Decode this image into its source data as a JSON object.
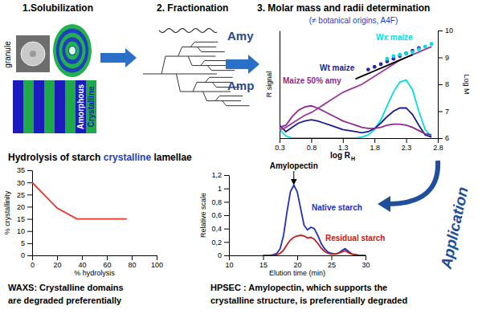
{
  "steps": [
    "1.Solubilization",
    "2. Fractionation",
    "3. Molar mass and radii determination"
  ],
  "step3_note": "(≠ botanical origins, A4F)",
  "granule": "granule",
  "layers": [
    "Amorphous",
    "Crystalline"
  ],
  "fractions": [
    "Amy",
    "Amp"
  ],
  "application": "Application",
  "chart_data": [
    {
      "type": "line",
      "xlabel": "log R",
      "xlabel_subscript": "H",
      "ylabel": "R signal",
      "y2label": "Log M",
      "x": [
        0.3,
        0.4,
        0.5,
        0.6,
        0.7,
        0.8,
        0.9,
        1.0,
        1.1,
        1.2,
        1.3,
        1.4,
        1.5,
        1.6,
        1.7,
        1.8,
        1.9,
        2.0,
        2.1,
        2.2,
        2.3,
        2.4,
        2.5,
        2.6,
        2.7,
        2.8
      ],
      "xlim": [
        0.3,
        2.8
      ],
      "xticks": [
        0.3,
        0.8,
        1.3,
        1.8,
        2.3,
        2.8
      ],
      "ylim": [
        0,
        1
      ],
      "yticks": [],
      "y2lim": [
        6,
        10
      ],
      "y2ticks": [
        6,
        7,
        8,
        9,
        10
      ],
      "series": [
        {
          "name": "Wx maize",
          "color": "#00dde6",
          "values": [
            0.08,
            0.02,
            0,
            0,
            0,
            0,
            0,
            0,
            0,
            0,
            0,
            0,
            0,
            0.01,
            0.03,
            0.08,
            0.17,
            0.3,
            0.43,
            0.52,
            0.54,
            0.45,
            0.25,
            0.08,
            0.01,
            null
          ]
        },
        {
          "name": "Wt maize",
          "color": "#1c1c8e",
          "values": [
            0.12,
            0.06,
            0.1,
            0.14,
            0.16,
            0.17,
            0.16,
            0.14,
            0.12,
            0.1,
            0.08,
            0.07,
            0.06,
            0.05,
            0.06,
            0.09,
            0.14,
            0.2,
            0.25,
            0.28,
            0.28,
            0.22,
            0.12,
            0.03,
            0.01,
            null
          ]
        },
        {
          "name": "Maize 50% amy",
          "color": "#8e2a8e",
          "values": [
            0.1,
            0.12,
            0.2,
            0.26,
            0.29,
            0.3,
            0.28,
            0.25,
            0.22,
            0.19,
            0.16,
            0.14,
            0.12,
            0.1,
            0.09,
            0.09,
            0.1,
            0.12,
            0.13,
            0.13,
            0.12,
            0.1,
            0.07,
            0.04,
            0.03,
            null
          ]
        },
        {
          "color": "#9b3b9b",
          "axis": "y2",
          "values": [
            6.3,
            6.4,
            6.55,
            6.7,
            6.85,
            6.95,
            7.1,
            7.25,
            7.4,
            7.55,
            7.7,
            7.8,
            7.9,
            8.0,
            8.15,
            8.3,
            8.45,
            8.6,
            8.75,
            8.9,
            9.0,
            9.1,
            9.2,
            9.3,
            9.4,
            null
          ]
        },
        {
          "color": "#000000",
          "axis": "y2",
          "values": [
            null,
            null,
            null,
            null,
            null,
            null,
            null,
            null,
            null,
            null,
            null,
            null,
            8.2,
            8.3,
            8.4,
            8.5,
            8.6,
            8.7,
            8.8,
            8.9,
            9.0,
            9.1,
            null,
            null,
            null,
            null
          ]
        },
        {
          "color": "#2a2aa8",
          "axis": "y2",
          "marker": "circle",
          "values": [
            null,
            null,
            null,
            null,
            null,
            null,
            null,
            null,
            null,
            null,
            null,
            null,
            null,
            null,
            8.55,
            8.65,
            8.75,
            8.85,
            8.95,
            9.05,
            9.15,
            9.25,
            9.35,
            null,
            null,
            null
          ]
        },
        {
          "color": "#00dde6",
          "axis": "y2",
          "marker": "circle",
          "values": [
            null,
            null,
            null,
            null,
            null,
            null,
            null,
            null,
            null,
            null,
            null,
            null,
            null,
            null,
            null,
            null,
            null,
            8.95,
            9.05,
            9.1,
            9.15,
            9.2,
            9.3,
            9.4,
            9.5,
            null
          ]
        }
      ]
    },
    {
      "type": "line",
      "title": [
        "Hydrolysis of starch",
        "crystalline",
        "lamellae"
      ],
      "xlabel": "% hydrolysis",
      "ylabel": "% crystallinity",
      "x": [
        0,
        20,
        36,
        76
      ],
      "xlim": [
        0,
        100
      ],
      "xticks": [
        0,
        20,
        40,
        60,
        80,
        100
      ],
      "ylim": [
        0,
        35
      ],
      "yticks": [
        0,
        5,
        10,
        15,
        20,
        25,
        30,
        35
      ],
      "series": [
        {
          "color": "#e8352b",
          "values": [
            30,
            19.5,
            15,
            15
          ]
        }
      ],
      "caption": [
        "WAXS: Crystalline domains",
        "are degraded preferentially"
      ]
    },
    {
      "type": "line",
      "xlabel": "Elution time (min)",
      "ylabel": "Relative scale",
      "annotation": "Amylopectin",
      "x": [
        15,
        15.5,
        16,
        16.5,
        17,
        17.5,
        18,
        18.5,
        19,
        19.5,
        20,
        20.5,
        21,
        21.5,
        22,
        22.5,
        23,
        23.5,
        24,
        24.5,
        25,
        25.5,
        26,
        26.5,
        27,
        27.5,
        28,
        28.5,
        29,
        29.5,
        30
      ],
      "xlim": [
        10,
        30
      ],
      "xticks": [
        10,
        15,
        20,
        25,
        30
      ],
      "ylim": [
        0,
        1.2
      ],
      "yticks": [
        0,
        {
          "value": 0.2,
          "label": "0,2"
        },
        {
          "value": 0.4,
          "label": "0,4"
        },
        {
          "value": 0.6,
          "label": "0,6"
        },
        {
          "value": 0.8,
          "label": "0,8"
        },
        1,
        {
          "value": 1.2,
          "label": "1,2"
        }
      ],
      "series": [
        {
          "name": "Native starch",
          "color": "#1f2fbf",
          "values": [
            0,
            0,
            0,
            0.01,
            0.03,
            0.1,
            0.3,
            0.65,
            0.95,
            1.05,
            0.95,
            0.7,
            0.45,
            0.38,
            0.42,
            0.4,
            0.3,
            0.18,
            0.1,
            0.05,
            0.03,
            0.02,
            0.03,
            0.07,
            0.1,
            0.06,
            0.02,
            0.01,
            0,
            0,
            0
          ]
        },
        {
          "name": "Residual starch",
          "color": "#c0201a",
          "values": [
            0,
            0,
            0,
            0,
            0.01,
            0.03,
            0.08,
            0.16,
            0.23,
            0.27,
            0.29,
            0.3,
            0.29,
            0.26,
            0.27,
            0.24,
            0.18,
            0.11,
            0.06,
            0.03,
            0.02,
            0.02,
            0.03,
            0.05,
            0.07,
            0.04,
            0.02,
            0.01,
            0,
            0,
            0
          ]
        }
      ],
      "caption": [
        "HPSEC : Amylopectin, which supports the",
        "crystalline structure, is preferentially degraded"
      ]
    }
  ]
}
